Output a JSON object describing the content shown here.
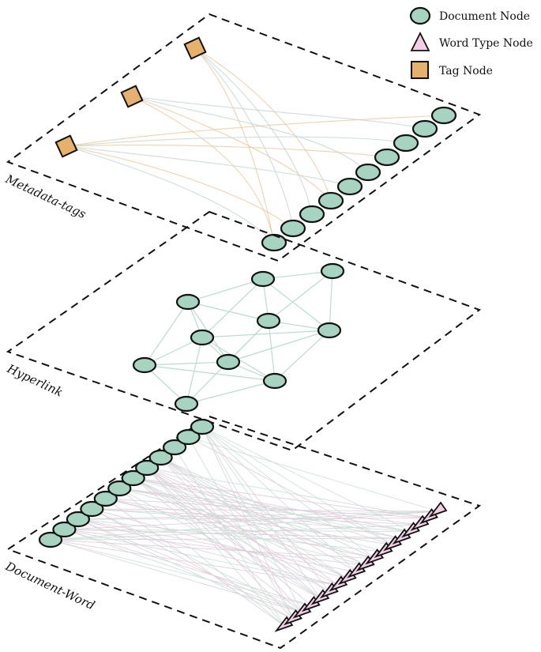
{
  "legend": {
    "items": [
      {
        "label": "Document Node",
        "shape": "circle",
        "color": "#a7d3c1"
      },
      {
        "label": "Word Type Node",
        "shape": "triangle",
        "color": "#f2cfe5"
      },
      {
        "label": "Tag Node",
        "shape": "square",
        "color": "#e6b06d"
      }
    ]
  },
  "layers": {
    "metadata_label": "Metadata-tags",
    "hyperlink_label": "Hyperlink",
    "document_word_label": "Document-Word"
  },
  "colors": {
    "document_node": "#a7d3c1",
    "word_node": "#f2cfe5",
    "tag_node": "#e6b06d"
  }
}
